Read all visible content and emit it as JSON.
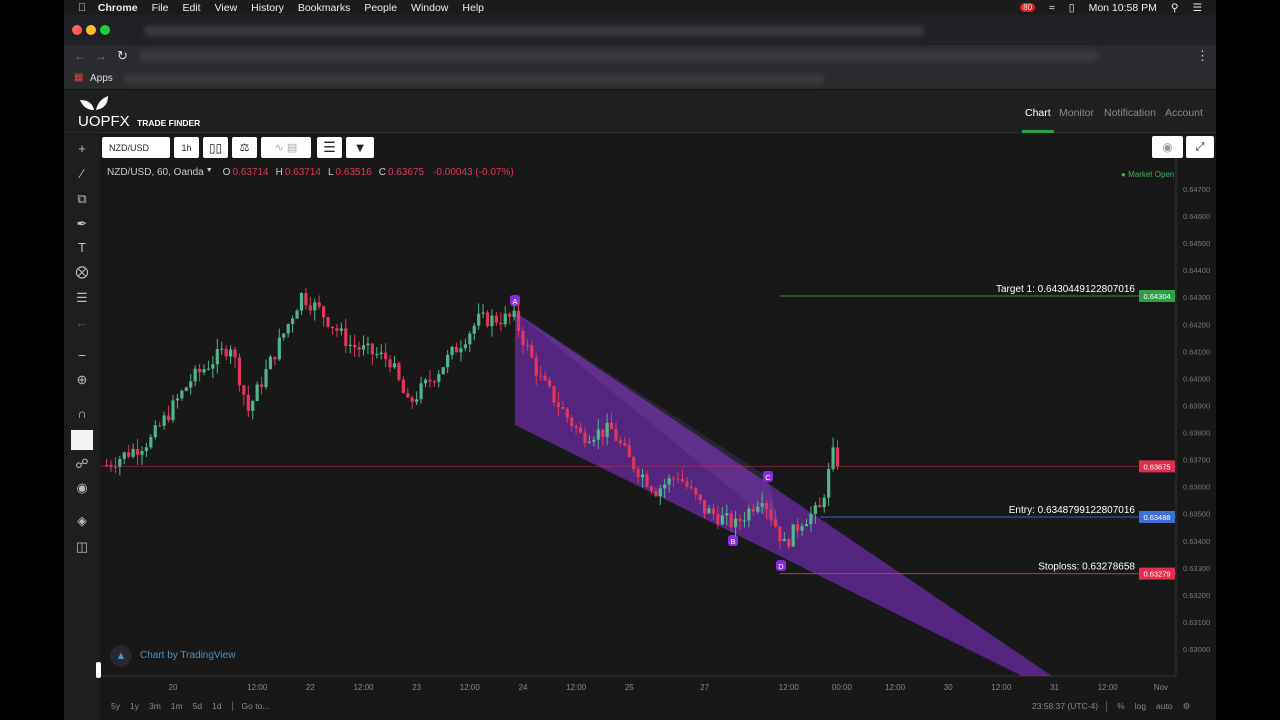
{
  "menubar": {
    "app": "Chrome",
    "items": [
      "File",
      "Edit",
      "View",
      "History",
      "Bookmarks",
      "People",
      "Window",
      "Help"
    ],
    "clock": "Mon 10:58 PM",
    "badge": "80"
  },
  "bookmarks": {
    "apps": "Apps"
  },
  "brand": {
    "logo": "UOPFX",
    "subtitle": "TRADE FINDER"
  },
  "nav": {
    "items": [
      "Chart",
      "Monitor",
      "Notification",
      "Account"
    ],
    "active": "Chart",
    "accent": "#2ea043"
  },
  "toolbar": {
    "symbol": "NZD/USD",
    "interval": "1h"
  },
  "legend": {
    "title": "NZD/USD, 60, Oanda",
    "o_label": "O",
    "o": "0.63714",
    "h_label": "H",
    "h": "0.63714",
    "l_label": "L",
    "l": "0.63516",
    "c_label": "C",
    "c": "0.63675",
    "change": "-0.00043 (-0.07%)"
  },
  "market_status": "Market Open",
  "attribution": "Chart by TradingView",
  "chart_data": {
    "type": "candlestick",
    "symbol": "NZD/USD",
    "interval": "60",
    "source": "Oanda",
    "ylim": [
      0.6297,
      0.6472
    ],
    "y_ticks": [
      "0.64700",
      "0.64600",
      "0.64500",
      "0.64400",
      "0.64300",
      "0.64200",
      "0.64100",
      "0.64000",
      "0.63900",
      "0.63800",
      "0.63700",
      "0.63600",
      "0.63500",
      "0.63400",
      "0.63300",
      "0.63200",
      "0.63100",
      "0.63000"
    ],
    "x_ticks": [
      {
        "t": "10-20 17:00",
        "label": "20"
      },
      {
        "t": "10-21 12:00",
        "label": "12:00"
      },
      {
        "t": "10-22 00:00",
        "label": "22"
      },
      {
        "t": "10-22 12:00",
        "label": "12:00"
      },
      {
        "t": "10-23 00:00",
        "label": "23"
      },
      {
        "t": "10-23 12:00",
        "label": "12:00"
      },
      {
        "t": "10-24 00:00",
        "label": "24"
      },
      {
        "t": "10-24 12:00",
        "label": "12:00"
      },
      {
        "t": "10-25 00:00",
        "label": "25"
      },
      {
        "t": "10-27 17:00",
        "label": "27"
      },
      {
        "t": "10-28 12:00",
        "label": "12:00"
      },
      {
        "t": "10-29 00:00",
        "label": "00:00"
      },
      {
        "t": "10-29 12:00",
        "label": "12:00"
      },
      {
        "t": "10-30 00:00",
        "label": "30"
      },
      {
        "t": "10-30 12:00",
        "label": "12:00"
      },
      {
        "t": "10-31 00:00",
        "label": "31"
      },
      {
        "t": "10-31 12:00",
        "label": "12:00"
      },
      {
        "t": "11-01 00:00",
        "label": "Nov"
      }
    ],
    "price_path": [
      [
        "10-18 02:00",
        0.6368
      ],
      [
        "10-18 12:00",
        0.63773
      ],
      [
        "10-20 21:00",
        0.63994
      ],
      [
        "10-21 06:00",
        0.64124
      ],
      [
        "10-21 10:00",
        0.63883
      ],
      [
        "10-21 22:00",
        0.64308
      ],
      [
        "10-22 02:00",
        0.64253
      ],
      [
        "10-22 09:00",
        0.64124
      ],
      [
        "10-22 18:00",
        0.64068
      ],
      [
        "10-22 22:00",
        0.63902
      ],
      [
        "10-23 05:00",
        0.64031
      ],
      [
        "10-23 14:00",
        0.64216
      ],
      [
        "10-23 22:00",
        0.64223
      ],
      [
        "10-24 04:00",
        0.63994
      ],
      [
        "10-24 13:00",
        0.6379
      ],
      [
        "10-24 20:00",
        0.63809
      ],
      [
        "10-25 00:00",
        0.63698
      ],
      [
        "10-25 06:00",
        0.63588
      ],
      [
        "10-25 11:00",
        0.63643
      ],
      [
        "10-27 17:00",
        0.63514
      ],
      [
        "10-28 00:00",
        0.63458
      ],
      [
        "10-28 06:00",
        0.63569
      ],
      [
        "10-28 11:00",
        0.63384
      ],
      [
        "10-28 15:00",
        0.63477
      ],
      [
        "10-28 19:00",
        0.63514
      ],
      [
        "10-28 22:00",
        0.63717
      ],
      [
        "10-28 23:00",
        0.63675
      ]
    ],
    "pattern": {
      "points": [
        {
          "label": "A",
          "t": "10-23 22:00",
          "price": 0.6428
        },
        {
          "label": "B",
          "t": "10-28 00:00",
          "price": 0.6341
        },
        {
          "label": "C",
          "t": "10-28 07:00",
          "price": 0.6359
        },
        {
          "label": "D",
          "t": "10-28 10:00",
          "price": 0.6332
        }
      ],
      "color": "#7b2fbe"
    },
    "levels": [
      {
        "name": "target",
        "label": "Target 1: 0.6430449122807016",
        "price": 0.6430449122807016,
        "tag": "0.64304",
        "color": "#2ea043",
        "from": "10-28 10:00"
      },
      {
        "name": "entry",
        "label": "Entry: 0.6348799122807016",
        "price": 0.6348799122807016,
        "tag": "0.63488",
        "color": "#3d6fd6",
        "from": "10-28 19:00"
      },
      {
        "name": "stoploss",
        "label": "Stoploss: 0.63278658",
        "price": 0.63278658,
        "tag": "0.63279",
        "color": "#e0304e",
        "from": "10-28 10:00"
      },
      {
        "name": "last",
        "label": "",
        "price": 0.63675,
        "tag": "0.63675",
        "color": "#e0304e",
        "from": ""
      }
    ],
    "up_color": "#4fb58a",
    "down_color": "#e0365a"
  },
  "bottom": {
    "ranges": [
      "5y",
      "1y",
      "3m",
      "1m",
      "5d",
      "1d"
    ],
    "goto": "Go to...",
    "time": "23:58:37 (UTC-4)",
    "pct": "%",
    "log": "log",
    "auto": "auto"
  }
}
